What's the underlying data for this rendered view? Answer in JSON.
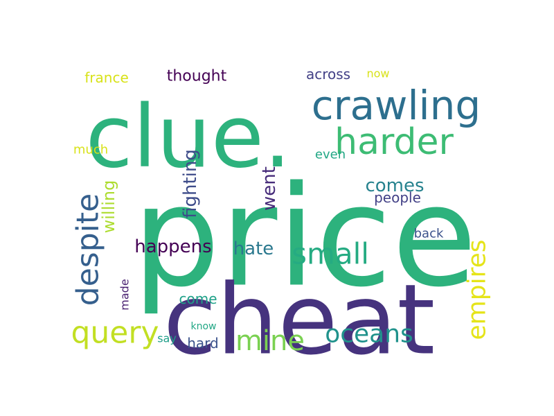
{
  "words": [
    {
      "id": "price",
      "text": "price",
      "color": "#2db27d"
    },
    {
      "id": "cheat",
      "text": "cheat",
      "color": "#46337e"
    },
    {
      "id": "clue",
      "text": "clue.",
      "color": "#2db27d"
    },
    {
      "id": "crawling",
      "text": "crawling",
      "color": "#2d6f8e"
    },
    {
      "id": "harder",
      "text": "harder",
      "color": "#3dbc74"
    },
    {
      "id": "despite",
      "text": "despite",
      "color": "#355f8d"
    },
    {
      "id": "query",
      "text": "query",
      "color": "#c2df23"
    },
    {
      "id": "small",
      "text": "small",
      "color": "#25ab82"
    },
    {
      "id": "oceans",
      "text": "oceans",
      "color": "#20928c"
    },
    {
      "id": "mine",
      "text": "mine",
      "color": "#7ad151"
    },
    {
      "id": "empires",
      "text": "empires",
      "color": "#e5e419"
    },
    {
      "id": "fighting",
      "text": "fighting",
      "color": "#3e4c8a"
    },
    {
      "id": "went",
      "text": "went",
      "color": "#472c7a"
    },
    {
      "id": "comes",
      "text": "comes",
      "color": "#26828e"
    },
    {
      "id": "happens",
      "text": "happens",
      "color": "#440154"
    },
    {
      "id": "hate",
      "text": "hate",
      "color": "#2a788e"
    },
    {
      "id": "willing",
      "text": "willing",
      "color": "#addc30"
    },
    {
      "id": "thought",
      "text": "thought",
      "color": "#440154"
    },
    {
      "id": "france",
      "text": "france",
      "color": "#d8e219"
    },
    {
      "id": "across",
      "text": "across",
      "color": "#424086"
    },
    {
      "id": "now",
      "text": "now",
      "color": "#d8e219"
    },
    {
      "id": "much",
      "text": "much",
      "color": "#d8e219"
    },
    {
      "id": "even",
      "text": "even",
      "color": "#22a785"
    },
    {
      "id": "people",
      "text": "people",
      "color": "#424086"
    },
    {
      "id": "back",
      "text": "back",
      "color": "#3b528b"
    },
    {
      "id": "come",
      "text": "come",
      "color": "#1fa188"
    },
    {
      "id": "hard",
      "text": "hard",
      "color": "#3b528b"
    },
    {
      "id": "made",
      "text": "made",
      "color": "#481f70"
    },
    {
      "id": "know",
      "text": "know",
      "color": "#22a785"
    },
    {
      "id": "say",
      "text": "say",
      "color": "#1f9e89"
    }
  ]
}
